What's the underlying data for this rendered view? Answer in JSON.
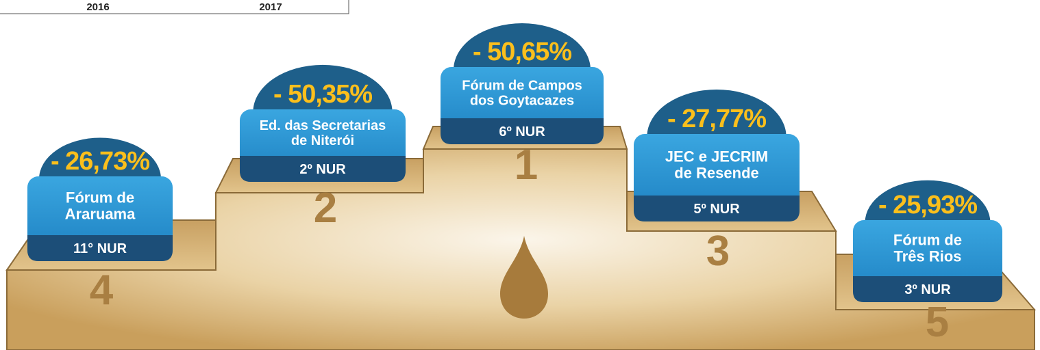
{
  "header": {
    "years": [
      "2016",
      "2017"
    ]
  },
  "podium": [
    {
      "percent": "- 26,73%",
      "name": [
        "Fórum de",
        "Araruama"
      ],
      "nur": "11° NUR",
      "rank": "4"
    },
    {
      "percent": "- 50,35%",
      "name": [
        "Ed. das Secretarias",
        "de Niterói"
      ],
      "nur": "2º NUR",
      "rank": "2"
    },
    {
      "percent": "- 50,65%",
      "name": [
        "Fórum de Campos",
        "dos Goytacazes"
      ],
      "nur": "6º NUR",
      "rank": "1"
    },
    {
      "percent": "- 27,77%",
      "name": [
        "JEC e JECRIM",
        "de Resende"
      ],
      "nur": "5º NUR",
      "rank": "3"
    },
    {
      "percent": "- 25,93%",
      "name": [
        "Fórum de",
        "Três Rios"
      ],
      "nur": "3º NUR",
      "rank": "5"
    }
  ]
}
